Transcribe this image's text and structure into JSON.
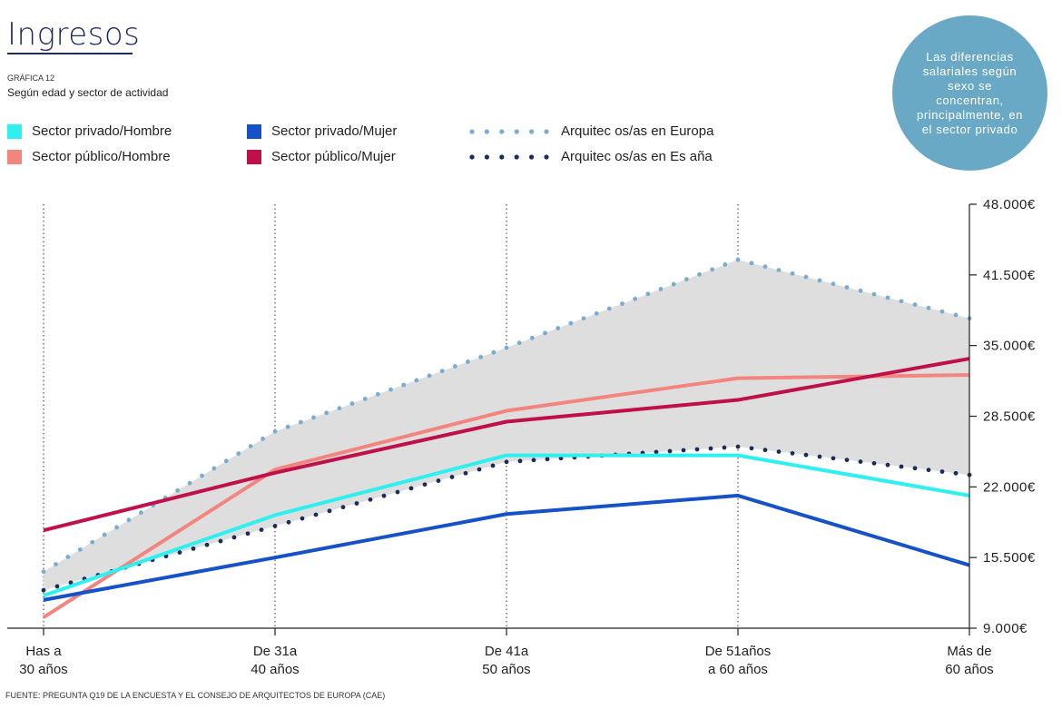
{
  "header": {
    "title": "Ingresos",
    "figure_label": "GRÁFICA 12",
    "subtitle": "Según edad y sector de actividad"
  },
  "callout": {
    "text": "Las diferencias salariales según sexo se concentran, principalmente, en el sector privado",
    "color": "#6aa9c6"
  },
  "source": "FUENTE: PREGUNTA Q19 DE LA ENCUESTA Y EL CONSEJO DE ARQUITECTOS DE EUROPA (CAE)",
  "legend": [
    {
      "label": "Sector privado/Hombre",
      "color": "#2ef0f0",
      "style": "solid"
    },
    {
      "label": "Sector público/Hombre",
      "color": "#f3857f",
      "style": "solid"
    },
    {
      "label": "Sector privado/Mujer",
      "color": "#1652c7",
      "style": "solid"
    },
    {
      "label": "Sector público/Mujer",
      "color": "#c0104a",
      "style": "solid"
    },
    {
      "label": "Arquitec os/as en Europa",
      "color": "#78acd2",
      "style": "dotted"
    },
    {
      "label": "Arquitec os/as en Es  aña",
      "color": "#1c2c5a",
      "style": "dotted"
    }
  ],
  "chart_data": {
    "type": "line",
    "title": "Según edad y sector de actividad",
    "xlabel": "",
    "ylabel": "",
    "categories": [
      "Has  a 30 años",
      "De 31a 40 años",
      "De 41a 50 años",
      "De 51años a 60 años",
      "Más de 60 años"
    ],
    "category_lines": [
      [
        "Has  a",
        "30 años"
      ],
      [
        "De 31a",
        "40 años"
      ],
      [
        "De 41a",
        "50 años"
      ],
      [
        "De 51años",
        "a 60 años"
      ],
      [
        "Más de",
        "60 años"
      ]
    ],
    "ylim": [
      9000,
      48000
    ],
    "yticks": [
      9000,
      15500,
      22000,
      28500,
      35000,
      41500,
      48000
    ],
    "ytick_labels": [
      "9.000€",
      "15.500€",
      "22.000€",
      "28.500€",
      "35.000€",
      "41.500€",
      "48.000€"
    ],
    "shaded_band": {
      "upper_series": "Arquitec os/as en Europa",
      "lower_series": "Arquitec os/as en Es  aña",
      "color": "#dedede"
    },
    "series": [
      {
        "name": "Arquitec os/as en Europa",
        "color": "#78acd2",
        "style": "dotted",
        "values": [
          14200,
          27100,
          34800,
          42900,
          37500
        ]
      },
      {
        "name": "Arquitec os/as en Es  aña",
        "color": "#1c2c5a",
        "style": "dotted",
        "values": [
          12500,
          18400,
          24300,
          25700,
          23100
        ]
      },
      {
        "name": "Sector público/Hombre",
        "color": "#f3857f",
        "style": "solid",
        "values": [
          10000,
          23600,
          29000,
          32000,
          32300
        ]
      },
      {
        "name": "Sector público/Mujer",
        "color": "#c0104a",
        "style": "solid",
        "values": [
          18000,
          23300,
          28000,
          30000,
          33800
        ]
      },
      {
        "name": "Sector privado/Hombre",
        "color": "#2ef0f0",
        "style": "solid",
        "values": [
          12000,
          19400,
          24900,
          24900,
          21200
        ]
      },
      {
        "name": "Sector privado/Mujer",
        "color": "#1652c7",
        "style": "solid",
        "values": [
          11600,
          15500,
          19500,
          21200,
          14800
        ]
      }
    ]
  }
}
